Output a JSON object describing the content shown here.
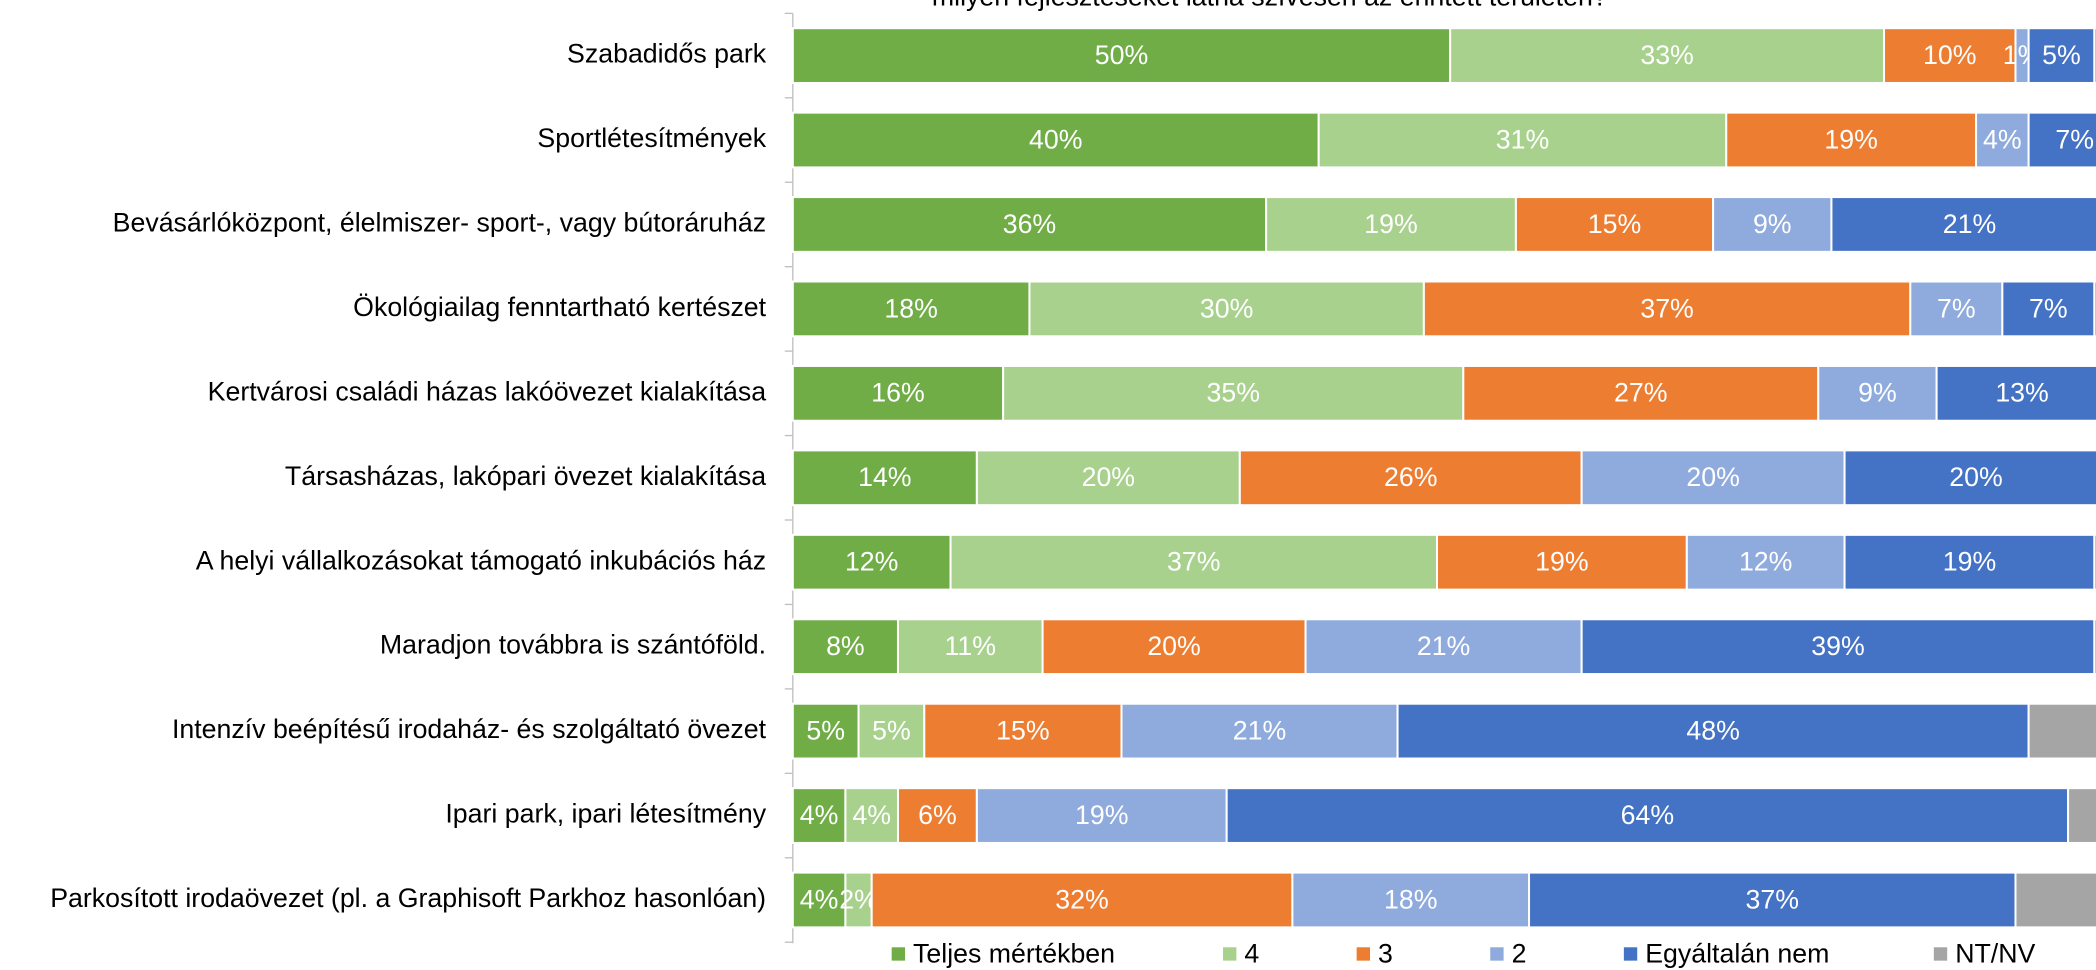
{
  "chart_data": {
    "type": "stacked-bar-horizontal",
    "title": "milyen fejlesztéseket látna szívesen az érintett területen?",
    "categories": [
      "Szabadidős park",
      "Sportlétesítmények",
      "Bevásárlóközpont, élelmiszer- sport-, vagy bútoráruház",
      "Ökológiailag fenntartható kertészet",
      "Kertvárosi családi házas lakóövezet kialakítása",
      "Társasházas, lakópari övezet kialakítása",
      "A helyi vállalkozásokat támogató inkubációs ház",
      "Maradjon továbbra is szántóföld.",
      "Intenzív beépítésű irodaház- és szolgáltató övezet",
      "Ipari park, ipari létesítmény",
      "Parkosított irodaövezet (pl. a Graphisoft Parkhoz hasonlóan)"
    ],
    "xlim": [
      0,
      100
    ],
    "legend": "bottom",
    "series": [
      {
        "name": "Teljes mértékben",
        "color": "#70ad47",
        "values": [
          50,
          40,
          36,
          18,
          16,
          14,
          12,
          8,
          5,
          4,
          4
        ],
        "value_labels": [
          "50%",
          "40%",
          "36%",
          "18%",
          "16%",
          "14%",
          "12%",
          "8%",
          "5%",
          "4%",
          "4%"
        ]
      },
      {
        "name": "4",
        "color": "#a9d18e",
        "values": [
          33,
          31,
          19,
          30,
          35,
          20,
          37,
          11,
          5,
          4,
          2
        ],
        "value_labels": [
          "33%",
          "31%",
          "19%",
          "30%",
          "35%",
          "20%",
          "37%",
          "11%",
          "5%",
          "4%",
          "2%"
        ]
      },
      {
        "name": "3",
        "color": "#ed7d31",
        "values": [
          10,
          19,
          15,
          37,
          27,
          26,
          19,
          20,
          15,
          6,
          32
        ],
        "value_labels": [
          "10%",
          "19%",
          "15%",
          "37%",
          "27%",
          "26%",
          "19%",
          "20%",
          "15%",
          "6%",
          "32%"
        ]
      },
      {
        "name": "2",
        "color": "#8faadc",
        "values": [
          1,
          4,
          9,
          7,
          9,
          20,
          12,
          21,
          21,
          19,
          18
        ],
        "value_labels": [
          "1%",
          "4%",
          "9%",
          "7%",
          "9%",
          "20%",
          "12%",
          "21%",
          "21%",
          "19%",
          "18%"
        ]
      },
      {
        "name": "Egyáltalán nem",
        "color": "#4472c4",
        "values": [
          5,
          7,
          21,
          7,
          13,
          20,
          19,
          39,
          48,
          64,
          37
        ],
        "value_labels": [
          "5%",
          "7%",
          "21%",
          "7%",
          "13%",
          "20%",
          "19%",
          "39%",
          "48%",
          "64%",
          "37%"
        ]
      },
      {
        "name": "NT/NV",
        "color": "#a5a5a5",
        "values": [
          1,
          0,
          0,
          1,
          0,
          0,
          1,
          1,
          6,
          3,
          7
        ]
      }
    ]
  }
}
